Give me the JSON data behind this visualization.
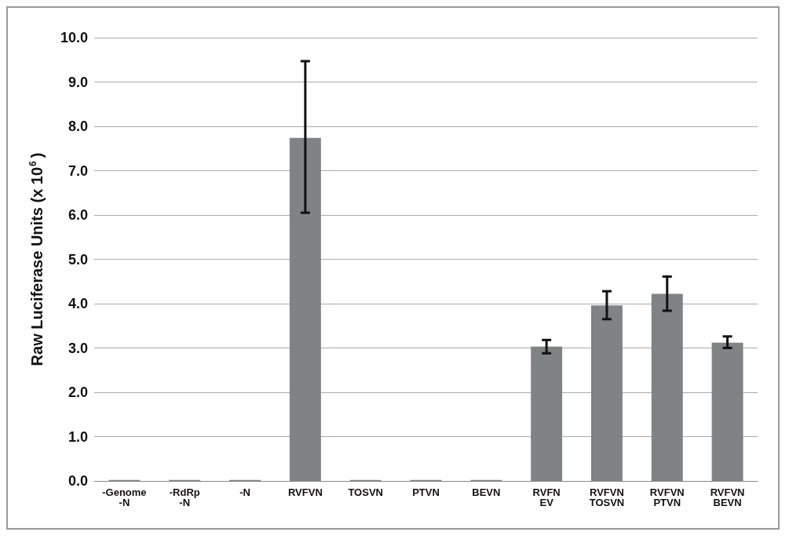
{
  "chart_data": {
    "type": "bar",
    "ylabel": "Raw Luciferase Units (x 10$^{6}$)",
    "categories": [
      "-Genome\n-N",
      "-RdRp\n-N",
      "-N",
      "RVFVN",
      "TOSVN",
      "PTVN",
      "BEVN",
      "RVFN\nEV",
      "RVFVN\nTOSVN",
      "RVFVN\nPTVN",
      "RVFVN\nBEVN"
    ],
    "values": [
      0.02,
      0.02,
      0.02,
      7.74,
      0.02,
      0.02,
      0.02,
      3.03,
      3.96,
      4.22,
      3.12
    ],
    "errors": [
      null,
      null,
      null,
      [
        6.05,
        9.47
      ],
      null,
      null,
      null,
      [
        2.88,
        3.18
      ],
      [
        3.65,
        4.28
      ],
      [
        3.84,
        4.61
      ],
      [
        3.0,
        3.26
      ]
    ],
    "color": "#7f8384",
    "ylim": [
      0,
      10
    ],
    "yticks": [
      {
        "value": 0,
        "label": "0.0"
      },
      {
        "value": 1,
        "label": "1.0"
      },
      {
        "value": 2,
        "label": "2.0"
      },
      {
        "value": 3,
        "label": "3.0"
      },
      {
        "value": 4,
        "label": "4.0"
      },
      {
        "value": 5,
        "label": "5.0"
      },
      {
        "value": 6,
        "label": "6.0"
      },
      {
        "value": 7,
        "label": "7.0"
      },
      {
        "value": 8,
        "label": "8.0"
      },
      {
        "value": 9,
        "label": "9.0"
      },
      {
        "value": 10,
        "label": "10.0"
      }
    ],
    "grid": "y"
  }
}
